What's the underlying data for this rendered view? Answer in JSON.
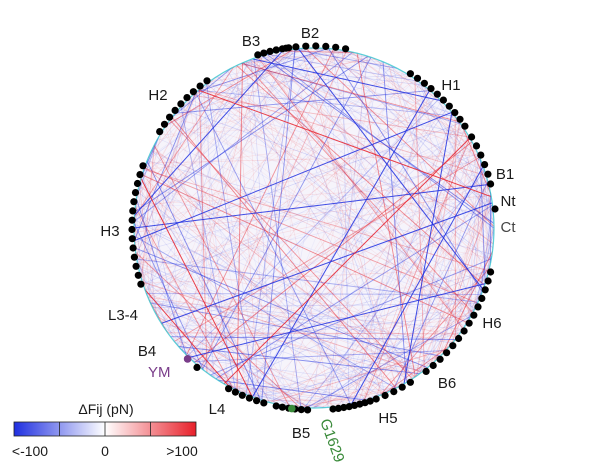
{
  "figure": {
    "segments": [
      {
        "name": "B2",
        "dots": 8,
        "start": -102,
        "end": -80,
        "label": "B2"
      },
      {
        "name": "H1",
        "dots": 10,
        "start": -58,
        "end": -34,
        "label": "H1"
      },
      {
        "name": "B1",
        "dots": 6,
        "start": -30,
        "end": -14,
        "label": "B1"
      },
      {
        "name": "Nt",
        "dots": 1,
        "start": -6,
        "end": -6,
        "label": "Nt"
      },
      {
        "name": "Ct",
        "dots": 0,
        "start": 6,
        "end": 6,
        "label": "Ct"
      },
      {
        "name": "H6",
        "dots": 14,
        "start": 14,
        "end": 52,
        "label": "H6"
      },
      {
        "name": "B6",
        "dots": 5,
        "start": 58,
        "end": 70,
        "label": "B6"
      },
      {
        "name": "H5",
        "dots": 8,
        "start": 72,
        "end": 84,
        "label": "H5"
      },
      {
        "name": "B5",
        "dots": 6,
        "start": 92,
        "end": 102,
        "label": "B5"
      },
      {
        "name": "L4",
        "dots": 6,
        "start": 106,
        "end": 118,
        "label": "L4"
      },
      {
        "name": "B4",
        "dots": 2,
        "start": 130,
        "end": 134,
        "label": "B4"
      },
      {
        "name": "L3-4",
        "dots": 0,
        "start": 148,
        "end": 148,
        "label": "L3-4"
      },
      {
        "name": "H3",
        "dots": 14,
        "start": 162,
        "end": 200,
        "label": "H3"
      },
      {
        "name": "H2",
        "dots": 9,
        "start": 212,
        "end": 234,
        "label": "H2"
      },
      {
        "name": "B3",
        "dots": 6,
        "start": 252,
        "end": 262,
        "label": "B3"
      }
    ],
    "highlighted_residues": [
      {
        "label": "YM",
        "angle": 134,
        "color": "#7a3d8a"
      },
      {
        "label": "G1629",
        "angle": 97,
        "color": "#3a8a3a"
      }
    ],
    "colors": {
      "negative": "#1f2fe0",
      "positive": "#e8202a",
      "neutral": "#ffffff",
      "dot": "#000000",
      "backbone": "#36c6d0"
    }
  },
  "colorbar": {
    "title": "ΔFij (pN)",
    "tick_labels": [
      "<-100",
      "0",
      ">100"
    ],
    "min": -100,
    "max": 100
  }
}
